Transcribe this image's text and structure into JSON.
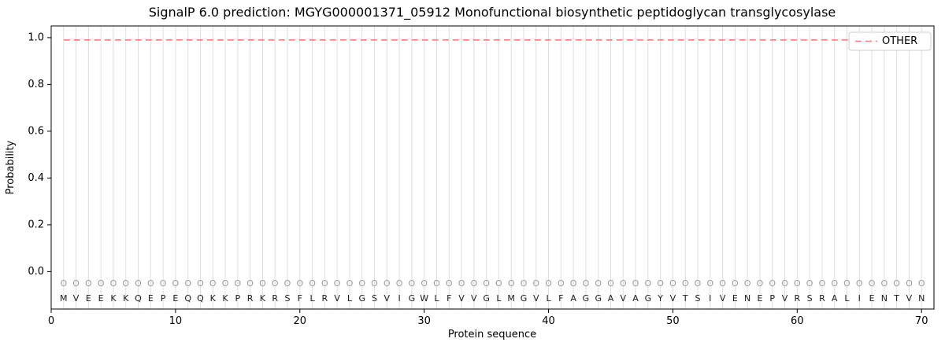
{
  "chart_data": {
    "type": "line",
    "title": "SignalP 6.0 prediction: MGYG000001371_05912 Monofunctional biosynthetic peptidoglycan transglycosylase",
    "xlabel": "Protein sequence",
    "ylabel": "Probability",
    "xlim": [
      0,
      71
    ],
    "ylim": [
      -0.16,
      1.05
    ],
    "xticks": [
      0,
      10,
      20,
      30,
      40,
      50,
      60,
      70
    ],
    "yticks": [
      0.0,
      0.2,
      0.4,
      0.6,
      0.8,
      1.0
    ],
    "grid": "light vertical gridline at every residue position",
    "sequence": "MVEEKKQEPEQQKKPRKRSFLRVLGSVIGWLFVVGLMGVLFAGGAVAGYVTSIVENEPVRSRALIENTVN",
    "per_position_label": "O",
    "series": [
      {
        "name": "OTHER",
        "style": "dashed",
        "color": "#fa7b7b",
        "x_start": 1,
        "x_end": 70,
        "constant_value": 0.99
      }
    ],
    "legend": {
      "position": "upper right",
      "entries": [
        "OTHER"
      ]
    },
    "colors": {
      "grid": "#dedede",
      "marker": "#9b9b9b",
      "residue_text": "#1a1a1a",
      "axis": "#000000",
      "legend_border": "#cccccc"
    }
  }
}
